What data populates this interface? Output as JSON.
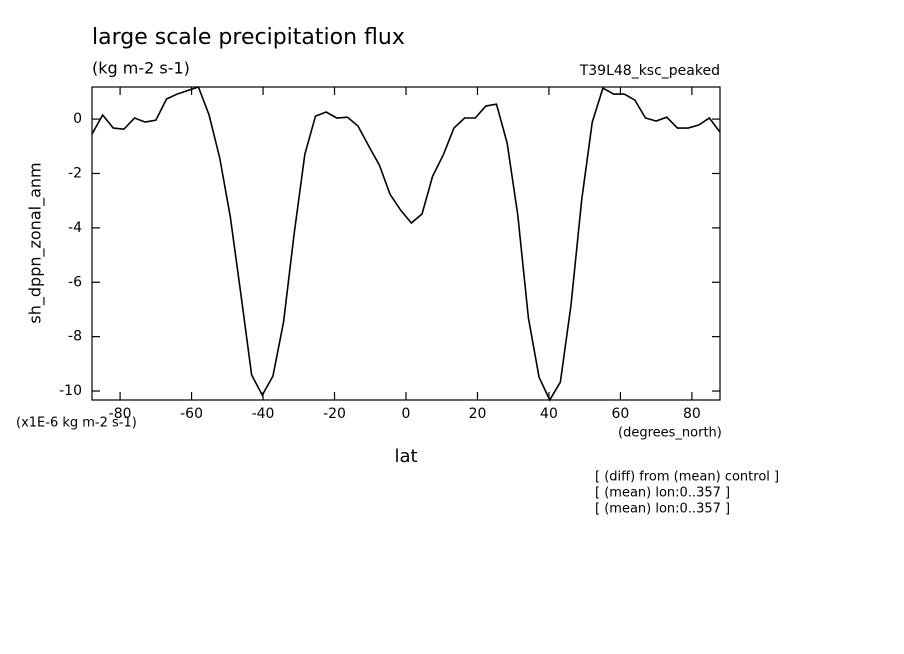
{
  "chart_data": {
    "type": "line",
    "title": "large scale precipitation flux",
    "subtitle": "(kg m-2 s-1)",
    "run_label": "T39L48_ksc_peaked",
    "ylabel": "sh_dppn_zonal_anm",
    "y_units": "(x1E-6 kg m-2 s-1)",
    "xlabel": "lat",
    "x_units": "(degrees_north)",
    "notes": [
      "[ (diff) from (mean) control ]",
      "[ (mean) lon:0..357 ]",
      "[ (mean) lon:0..357 ]"
    ],
    "xlim": [
      -87.86,
      87.86
    ],
    "ylim": [
      -10.33,
      1.18
    ],
    "xticks": [
      -80,
      -60,
      -40,
      -20,
      0,
      20,
      40,
      60,
      80
    ],
    "yticks": [
      -10,
      -8,
      -6,
      -4,
      -2,
      0
    ],
    "series": [
      {
        "color": "#000000",
        "x": [
          -87.86,
          -84.88,
          -81.9,
          -78.93,
          -75.95,
          -72.97,
          -69.99,
          -67.01,
          -64.04,
          -61.06,
          -58.08,
          -55.1,
          -52.12,
          -49.15,
          -46.17,
          -43.19,
          -40.21,
          -37.23,
          -34.26,
          -31.28,
          -28.3,
          -25.32,
          -22.34,
          -19.37,
          -16.39,
          -13.41,
          -10.43,
          -7.45,
          -4.48,
          -1.5,
          1.5,
          4.48,
          7.45,
          10.43,
          13.41,
          16.39,
          19.37,
          22.34,
          25.32,
          28.3,
          31.28,
          34.26,
          37.23,
          40.21,
          43.19,
          46.17,
          49.15,
          52.12,
          55.1,
          58.08,
          61.06,
          64.04,
          67.01,
          69.99,
          72.97,
          75.95,
          78.93,
          81.9,
          84.88,
          87.86
        ],
        "values": [
          -0.55,
          0.15,
          -0.33,
          -0.37,
          0.04,
          -0.11,
          -0.04,
          0.74,
          0.92,
          1.05,
          1.18,
          0.15,
          -1.43,
          -3.6,
          -6.47,
          -9.41,
          -10.15,
          -9.45,
          -7.46,
          -4.2,
          -1.29,
          0.11,
          0.26,
          0.04,
          0.07,
          -0.26,
          -0.99,
          -1.69,
          -2.76,
          -3.35,
          -3.82,
          -3.49,
          -2.1,
          -1.32,
          -0.33,
          0.04,
          0.04,
          0.48,
          0.55,
          -0.88,
          -3.53,
          -7.32,
          -9.49,
          -10.33,
          -9.67,
          -6.84,
          -2.98,
          -0.11,
          1.14,
          0.92,
          0.92,
          0.7,
          0.04,
          -0.07,
          0.07,
          -0.33,
          -0.33,
          -0.22,
          0.04,
          -0.48
        ]
      }
    ]
  }
}
